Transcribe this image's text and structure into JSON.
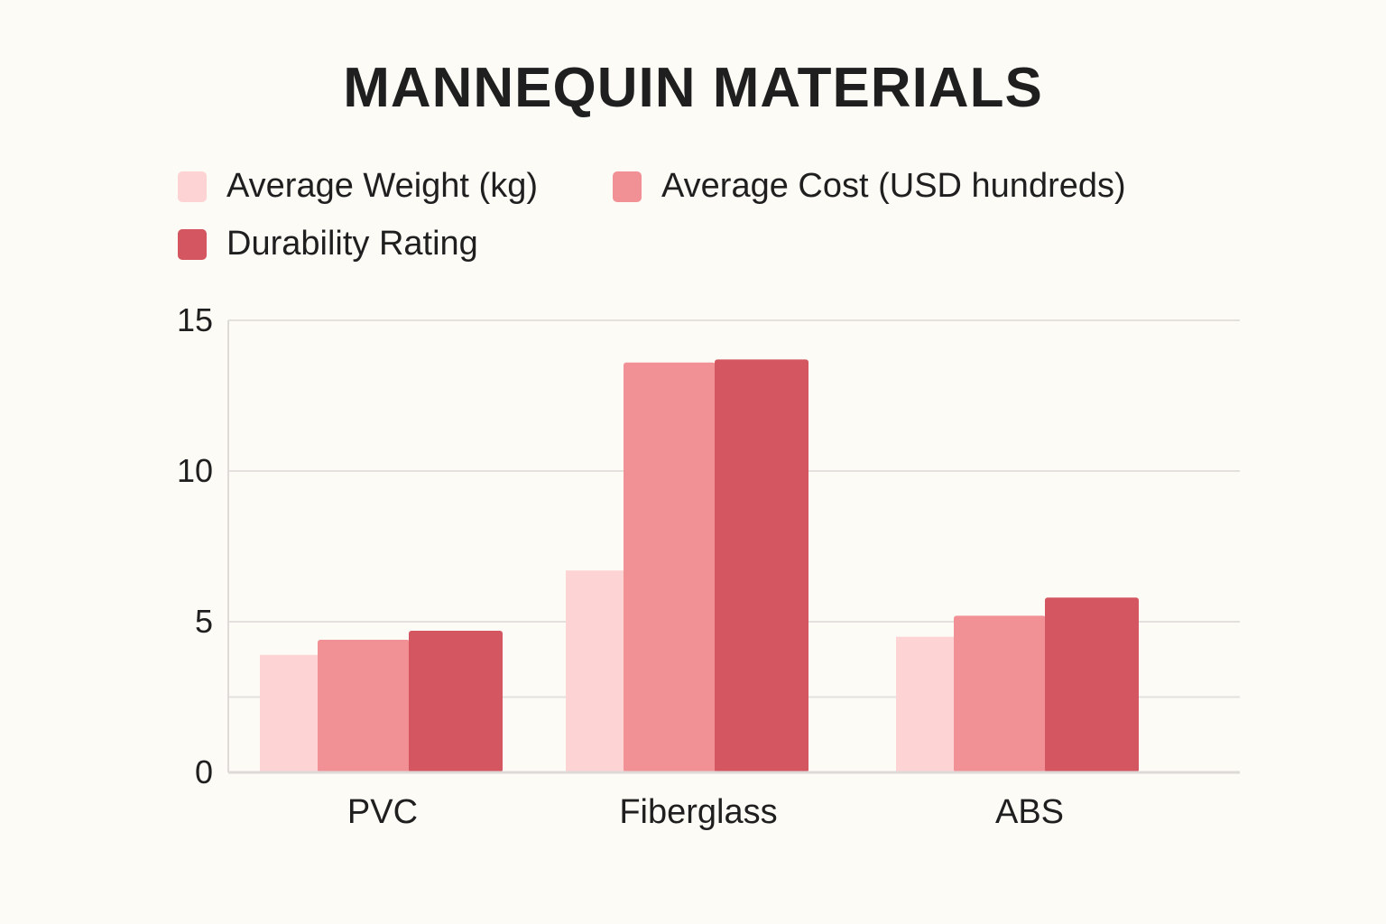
{
  "chart_data": {
    "type": "bar",
    "title": "MANNEQUIN MATERIALS",
    "categories": [
      "PVC",
      "Fiberglass",
      "ABS"
    ],
    "series": [
      {
        "name": "Average Weight (kg)",
        "color": "#fdd3d3",
        "values": [
          3.9,
          6.7,
          4.5
        ]
      },
      {
        "name": "Average Cost (USD hundreds)",
        "color": "#f29195",
        "values": [
          4.4,
          13.6,
          5.2
        ]
      },
      {
        "name": "Durability Rating",
        "color": "#d45660",
        "values": [
          4.7,
          13.7,
          5.8
        ]
      }
    ],
    "ylim": [
      0,
      15
    ],
    "yticks": [
      0,
      5,
      10,
      15
    ],
    "gridlines": [
      0,
      2.5,
      5,
      10,
      15
    ],
    "grid": true,
    "legend_position": "top-left"
  }
}
